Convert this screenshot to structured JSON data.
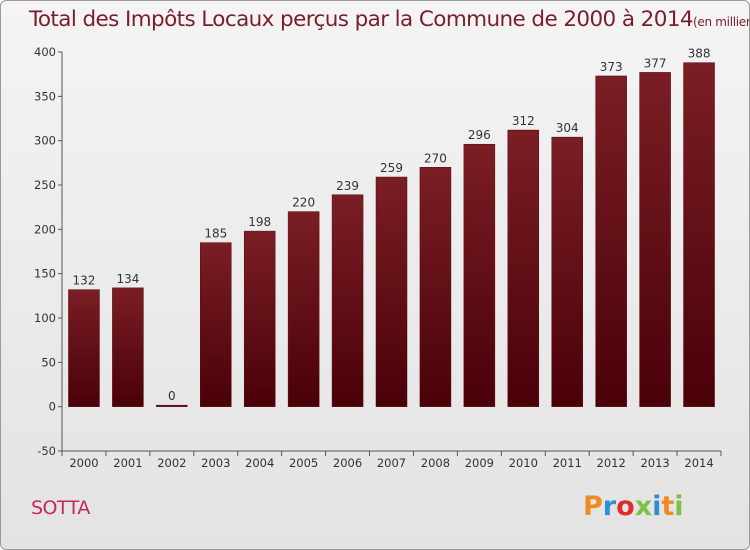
{
  "header": {
    "title": "Total des Impôts Locaux perçus par la Commune de 2000 à 2014",
    "unit_note": "(en milliers d'€)"
  },
  "footer": {
    "commune": "SOTTA",
    "logo_text": "Proxiti",
    "logo_colors": [
      "#f08a1e",
      "#2f8fd6",
      "#e02b2b",
      "#7cc242",
      "#2f8fd6",
      "#f08a1e",
      "#7cc242"
    ]
  },
  "chart_data": {
    "type": "bar",
    "categories": [
      "2000",
      "2001",
      "2002",
      "2003",
      "2004",
      "2005",
      "2006",
      "2007",
      "2008",
      "2009",
      "2010",
      "2011",
      "2012",
      "2013",
      "2014"
    ],
    "values": [
      132,
      134,
      0,
      185,
      198,
      220,
      239,
      259,
      270,
      296,
      312,
      304,
      373,
      377,
      388
    ],
    "data_labels": [
      "132",
      "134",
      "0",
      "185",
      "198",
      "220",
      "239",
      "259",
      "270",
      "296",
      "312",
      "304",
      "373",
      "377",
      "388"
    ],
    "yticks": [
      -50,
      0,
      50,
      100,
      150,
      200,
      250,
      300,
      350,
      400
    ],
    "ylim": [
      -50,
      400
    ],
    "grid": false,
    "bar_color": "#7a1e24",
    "bar_color_dark": "#4a0008"
  }
}
